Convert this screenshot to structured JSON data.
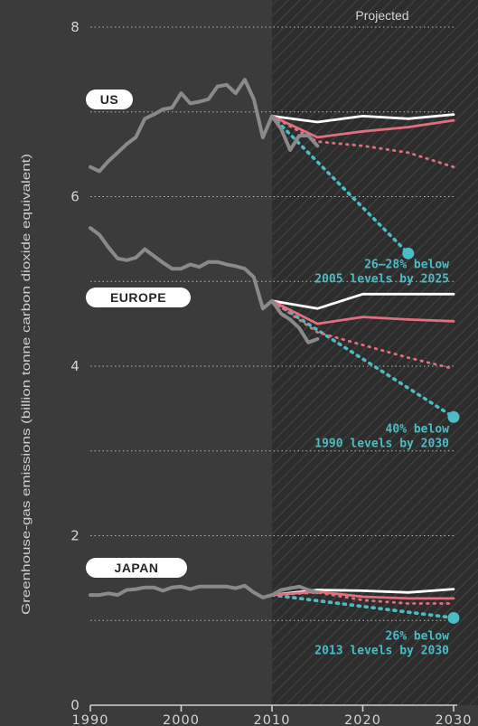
{
  "chart_data": {
    "type": "line",
    "title": "",
    "xlabel": "",
    "ylabel": "Greenhouse-gas emissions (billion tonne carbon dioxide equivalent)",
    "xlim": [
      1990,
      2030
    ],
    "ylim": [
      0,
      8
    ],
    "x_ticks": [
      "1990",
      "2000",
      "2010",
      "2020",
      "2030"
    ],
    "y_ticks": [
      "0",
      "2",
      "4",
      "6",
      "8"
    ],
    "projected_label": "Projected",
    "projected_from": 2010,
    "grid": "horizontal dotted",
    "colors": {
      "background": "#3b3b3b",
      "historical": "#8a8a8a",
      "scenario_white": "#ffffff",
      "scenario_pink_solid": "#e0707e",
      "scenario_pink_dotted": "#e0707e",
      "target": "#4bbcc6"
    },
    "regions": [
      {
        "label": "US",
        "historical": {
          "x": [
            1990,
            1991,
            1992,
            1993,
            1994,
            1995,
            1996,
            1997,
            1998,
            1999,
            2000,
            2001,
            2002,
            2003,
            2004,
            2005,
            2006,
            2007,
            2008,
            2009,
            2010,
            2011,
            2012,
            2013,
            2014,
            2015
          ],
          "y": [
            6.35,
            6.3,
            6.42,
            6.52,
            6.62,
            6.7,
            6.92,
            6.97,
            7.03,
            7.05,
            7.22,
            7.1,
            7.12,
            7.15,
            7.3,
            7.32,
            7.22,
            7.38,
            7.15,
            6.7,
            6.95,
            6.8,
            6.55,
            6.72,
            6.72,
            6.6
          ]
        },
        "projections": [
          {
            "style": "white",
            "x": [
              2010,
              2015,
              2020,
              2025,
              2030
            ],
            "y": [
              6.95,
              6.88,
              6.95,
              6.92,
              6.97
            ]
          },
          {
            "style": "pink_solid",
            "x": [
              2010,
              2015,
              2020,
              2025,
              2030
            ],
            "y": [
              6.95,
              6.7,
              6.77,
              6.82,
              6.9
            ]
          },
          {
            "style": "pink_dotted",
            "x": [
              2010,
              2015,
              2020,
              2025,
              2030
            ],
            "y": [
              6.95,
              6.65,
              6.6,
              6.52,
              6.35
            ]
          }
        ],
        "target": {
          "x": [
            2010,
            2025
          ],
          "y": [
            6.95,
            5.33
          ],
          "text": [
            "26–28% below",
            "2005 levels by 2025"
          ]
        }
      },
      {
        "label": "EUROPE",
        "historical": {
          "x": [
            1990,
            1991,
            1992,
            1993,
            1994,
            1995,
            1996,
            1997,
            1998,
            1999,
            2000,
            2001,
            2002,
            2003,
            2004,
            2005,
            2006,
            2007,
            2008,
            2009,
            2010,
            2011,
            2012,
            2013,
            2014,
            2015
          ],
          "y": [
            5.63,
            5.55,
            5.4,
            5.27,
            5.25,
            5.28,
            5.38,
            5.3,
            5.22,
            5.15,
            5.15,
            5.2,
            5.17,
            5.23,
            5.23,
            5.2,
            5.18,
            5.15,
            5.05,
            4.68,
            4.77,
            4.62,
            4.55,
            4.45,
            4.28,
            4.32
          ]
        },
        "projections": [
          {
            "style": "white",
            "x": [
              2010,
              2015,
              2020,
              2025,
              2030
            ],
            "y": [
              4.77,
              4.68,
              4.85,
              4.85,
              4.85
            ]
          },
          {
            "style": "pink_solid",
            "x": [
              2010,
              2015,
              2020,
              2025,
              2030
            ],
            "y": [
              4.77,
              4.5,
              4.58,
              4.55,
              4.53
            ]
          },
          {
            "style": "pink_dotted",
            "x": [
              2010,
              2015,
              2020,
              2025,
              2030
            ],
            "y": [
              4.77,
              4.4,
              4.25,
              4.1,
              3.97
            ]
          }
        ],
        "target": {
          "x": [
            2010,
            2030
          ],
          "y": [
            4.77,
            3.4
          ],
          "text": [
            "40% below",
            "1990 levels by 2030"
          ]
        }
      },
      {
        "label": "JAPAN",
        "historical": {
          "x": [
            1990,
            1991,
            1992,
            1993,
            1994,
            1995,
            1996,
            1997,
            1998,
            1999,
            2000,
            2001,
            2002,
            2003,
            2004,
            2005,
            2006,
            2007,
            2008,
            2009,
            2010,
            2011,
            2012,
            2013,
            2014,
            2015
          ],
          "y": [
            1.3,
            1.3,
            1.32,
            1.3,
            1.36,
            1.37,
            1.39,
            1.39,
            1.35,
            1.39,
            1.4,
            1.37,
            1.4,
            1.4,
            1.4,
            1.4,
            1.38,
            1.41,
            1.33,
            1.27,
            1.3,
            1.36,
            1.38,
            1.4,
            1.36,
            1.33
          ]
        },
        "projections": [
          {
            "style": "white",
            "x": [
              2010,
              2015,
              2020,
              2025,
              2030
            ],
            "y": [
              1.3,
              1.36,
              1.35,
              1.33,
              1.37
            ]
          },
          {
            "style": "pink_solid",
            "x": [
              2010,
              2015,
              2020,
              2025,
              2030
            ],
            "y": [
              1.3,
              1.34,
              1.28,
              1.26,
              1.26
            ]
          },
          {
            "style": "pink_dotted",
            "x": [
              2010,
              2015,
              2020,
              2025,
              2030
            ],
            "y": [
              1.3,
              1.33,
              1.24,
              1.2,
              1.2
            ]
          }
        ],
        "target": {
          "x": [
            2010,
            2030
          ],
          "y": [
            1.3,
            1.03
          ],
          "text": [
            "26% below",
            "2013 levels by 2030"
          ]
        }
      }
    ]
  }
}
